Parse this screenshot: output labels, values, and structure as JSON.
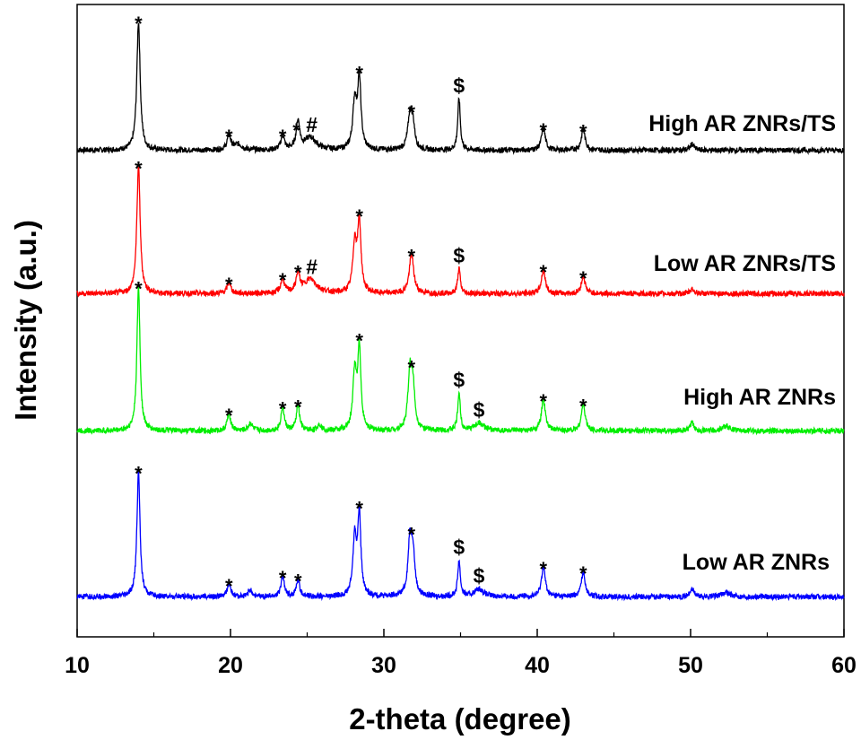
{
  "chart_data": {
    "type": "line",
    "xlabel": "2-theta (degree)",
    "ylabel": "Intensity (a.u.)",
    "xlim": [
      10,
      60
    ],
    "xticks": [
      10,
      20,
      30,
      40,
      50,
      60
    ],
    "y_tick_labels": false,
    "grid": false,
    "series": [
      {
        "name": "High AR ZNRs/TS",
        "color": "#000000",
        "baseline": 0.6,
        "peaks": [
          {
            "x": 14.0,
            "h": 8.2,
            "w": 0.13
          },
          {
            "x": 19.9,
            "h": 0.9,
            "w": 0.15
          },
          {
            "x": 20.5,
            "h": 0.35,
            "w": 0.3
          },
          {
            "x": 23.4,
            "h": 0.9,
            "w": 0.14
          },
          {
            "x": 24.4,
            "h": 1.8,
            "w": 0.14
          },
          {
            "x": 25.2,
            "h": 0.8,
            "w": 0.45
          },
          {
            "x": 28.1,
            "h": 3.0,
            "w": 0.15
          },
          {
            "x": 28.4,
            "h": 4.4,
            "w": 0.13
          },
          {
            "x": 31.7,
            "h": 2.2,
            "w": 0.16
          },
          {
            "x": 31.9,
            "h": 1.4,
            "w": 0.14
          },
          {
            "x": 34.9,
            "h": 3.3,
            "w": 0.1
          },
          {
            "x": 40.4,
            "h": 1.4,
            "w": 0.15
          },
          {
            "x": 43.0,
            "h": 1.3,
            "w": 0.15
          },
          {
            "x": 50.1,
            "h": 0.4,
            "w": 0.15
          }
        ]
      },
      {
        "name": "Low AR ZNRs/TS",
        "color": "#ff0000",
        "baseline": 0.55,
        "peaks": [
          {
            "x": 14.0,
            "h": 8.1,
            "w": 0.13
          },
          {
            "x": 19.9,
            "h": 0.7,
            "w": 0.15
          },
          {
            "x": 23.4,
            "h": 0.9,
            "w": 0.14
          },
          {
            "x": 24.4,
            "h": 1.2,
            "w": 0.14
          },
          {
            "x": 25.2,
            "h": 0.9,
            "w": 0.5
          },
          {
            "x": 28.1,
            "h": 3.1,
            "w": 0.15
          },
          {
            "x": 28.4,
            "h": 4.4,
            "w": 0.13
          },
          {
            "x": 31.8,
            "h": 2.5,
            "w": 0.17
          },
          {
            "x": 34.9,
            "h": 1.6,
            "w": 0.1
          },
          {
            "x": 40.4,
            "h": 1.5,
            "w": 0.15
          },
          {
            "x": 43.0,
            "h": 1.1,
            "w": 0.15
          },
          {
            "x": 50.1,
            "h": 0.3,
            "w": 0.15
          }
        ]
      },
      {
        "name": "High AR ZNRs",
        "color": "#00ee00",
        "baseline": 0.55,
        "peaks": [
          {
            "x": 14.0,
            "h": 9.2,
            "w": 0.12
          },
          {
            "x": 19.9,
            "h": 1.1,
            "w": 0.14
          },
          {
            "x": 21.3,
            "h": 0.5,
            "w": 0.15
          },
          {
            "x": 23.4,
            "h": 1.5,
            "w": 0.13
          },
          {
            "x": 24.4,
            "h": 1.6,
            "w": 0.13
          },
          {
            "x": 25.8,
            "h": 0.4,
            "w": 0.15
          },
          {
            "x": 28.1,
            "h": 3.7,
            "w": 0.14
          },
          {
            "x": 28.4,
            "h": 5.2,
            "w": 0.12
          },
          {
            "x": 31.7,
            "h": 3.6,
            "w": 0.15
          },
          {
            "x": 31.9,
            "h": 2.5,
            "w": 0.14
          },
          {
            "x": 34.9,
            "h": 2.4,
            "w": 0.1
          },
          {
            "x": 36.2,
            "h": 0.5,
            "w": 0.35
          },
          {
            "x": 40.4,
            "h": 2.0,
            "w": 0.15
          },
          {
            "x": 43.0,
            "h": 1.7,
            "w": 0.15
          },
          {
            "x": 50.1,
            "h": 0.5,
            "w": 0.15
          },
          {
            "x": 52.3,
            "h": 0.3,
            "w": 0.3
          }
        ]
      },
      {
        "name": "Low AR ZNRs",
        "color": "#0000ff",
        "baseline": 0.55,
        "peaks": [
          {
            "x": 14.0,
            "h": 8.0,
            "w": 0.12
          },
          {
            "x": 19.9,
            "h": 0.8,
            "w": 0.14
          },
          {
            "x": 21.3,
            "h": 0.4,
            "w": 0.15
          },
          {
            "x": 23.4,
            "h": 1.3,
            "w": 0.13
          },
          {
            "x": 24.4,
            "h": 1.1,
            "w": 0.13
          },
          {
            "x": 28.1,
            "h": 3.7,
            "w": 0.14
          },
          {
            "x": 28.4,
            "h": 5.1,
            "w": 0.12
          },
          {
            "x": 31.7,
            "h": 3.5,
            "w": 0.15
          },
          {
            "x": 31.9,
            "h": 2.5,
            "w": 0.14
          },
          {
            "x": 34.9,
            "h": 2.3,
            "w": 0.1
          },
          {
            "x": 36.2,
            "h": 0.5,
            "w": 0.35
          },
          {
            "x": 40.4,
            "h": 1.9,
            "w": 0.15
          },
          {
            "x": 43.0,
            "h": 1.6,
            "w": 0.15
          },
          {
            "x": 50.1,
            "h": 0.5,
            "w": 0.15
          },
          {
            "x": 52.3,
            "h": 0.3,
            "w": 0.3
          }
        ]
      }
    ],
    "annotations": [
      {
        "series": 0,
        "symbol": "*",
        "x": 14.0
      },
      {
        "series": 0,
        "symbol": "*",
        "x": 19.9
      },
      {
        "series": 0,
        "symbol": "*",
        "x": 23.4
      },
      {
        "series": 0,
        "symbol": "*",
        "x": 24.3
      },
      {
        "series": 0,
        "symbol": "#",
        "x": 25.3
      },
      {
        "series": 0,
        "symbol": "*",
        "x": 28.4
      },
      {
        "series": 0,
        "symbol": "*",
        "x": 31.8
      },
      {
        "series": 0,
        "symbol": "$",
        "x": 34.9
      },
      {
        "series": 0,
        "symbol": "*",
        "x": 40.4
      },
      {
        "series": 0,
        "symbol": "*",
        "x": 43.0
      },
      {
        "series": 1,
        "symbol": "*",
        "x": 14.0
      },
      {
        "series": 1,
        "symbol": "*",
        "x": 19.9
      },
      {
        "series": 1,
        "symbol": "*",
        "x": 23.4
      },
      {
        "series": 1,
        "symbol": "*",
        "x": 24.4
      },
      {
        "series": 1,
        "symbol": "#",
        "x": 25.3
      },
      {
        "series": 1,
        "symbol": "*",
        "x": 28.4
      },
      {
        "series": 1,
        "symbol": "*",
        "x": 31.8
      },
      {
        "series": 1,
        "symbol": "$",
        "x": 34.9
      },
      {
        "series": 1,
        "symbol": "*",
        "x": 40.4
      },
      {
        "series": 1,
        "symbol": "*",
        "x": 43.0
      },
      {
        "series": 2,
        "symbol": "*",
        "x": 14.0
      },
      {
        "series": 2,
        "symbol": "*",
        "x": 19.9
      },
      {
        "series": 2,
        "symbol": "*",
        "x": 23.4
      },
      {
        "series": 2,
        "symbol": "*",
        "x": 24.4
      },
      {
        "series": 2,
        "symbol": "*",
        "x": 28.4
      },
      {
        "series": 2,
        "symbol": "*",
        "x": 31.8
      },
      {
        "series": 2,
        "symbol": "$",
        "x": 34.9
      },
      {
        "series": 2,
        "symbol": "$",
        "x": 36.2
      },
      {
        "series": 2,
        "symbol": "*",
        "x": 40.4
      },
      {
        "series": 2,
        "symbol": "*",
        "x": 43.0
      },
      {
        "series": 3,
        "symbol": "*",
        "x": 14.0
      },
      {
        "series": 3,
        "symbol": "*",
        "x": 19.9
      },
      {
        "series": 3,
        "symbol": "*",
        "x": 23.4
      },
      {
        "series": 3,
        "symbol": "*",
        "x": 24.4
      },
      {
        "series": 3,
        "symbol": "*",
        "x": 28.4
      },
      {
        "series": 3,
        "symbol": "*",
        "x": 31.8
      },
      {
        "series": 3,
        "symbol": "$",
        "x": 34.9
      },
      {
        "series": 3,
        "symbol": "$",
        "x": 36.2
      },
      {
        "series": 3,
        "symbol": "*",
        "x": 40.4
      },
      {
        "series": 3,
        "symbol": "*",
        "x": 43.0
      }
    ]
  }
}
